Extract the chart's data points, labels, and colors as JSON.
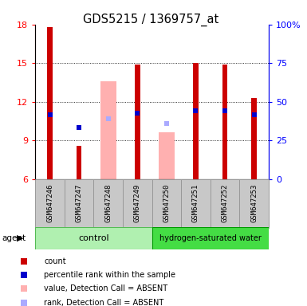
{
  "title": "GDS5215 / 1369757_at",
  "samples": [
    "GSM647246",
    "GSM647247",
    "GSM647248",
    "GSM647249",
    "GSM647250",
    "GSM647251",
    "GSM647252",
    "GSM647253"
  ],
  "ylim_left": [
    6,
    18
  ],
  "ylim_right": [
    0,
    100
  ],
  "yticks_left": [
    6,
    9,
    12,
    15,
    18
  ],
  "yticks_right": [
    0,
    25,
    50,
    75,
    100
  ],
  "yticklabels_right": [
    "0",
    "25",
    "50",
    "75",
    "100%"
  ],
  "red_bars": [
    17.8,
    8.6,
    null,
    14.9,
    null,
    15.0,
    14.9,
    12.3
  ],
  "pink_bars": [
    null,
    null,
    13.6,
    null,
    9.6,
    null,
    null,
    null
  ],
  "blue_squares": [
    11.0,
    10.0,
    null,
    11.1,
    null,
    11.3,
    11.3,
    11.0
  ],
  "lavender_squares": [
    null,
    null,
    10.7,
    null,
    10.3,
    null,
    null,
    null
  ],
  "bar_base": 6,
  "red_color": "#cc0000",
  "pink_color": "#ffb0b0",
  "blue_color": "#0000cc",
  "lavender_color": "#aaaaff",
  "ctrl_color": "#b0f0b0",
  "ctrl_edge": "#55bb55",
  "hyd_color": "#44dd44",
  "hyd_edge": "#009900",
  "gray_color": "#c8c8c8",
  "gray_edge": "#999999",
  "legend_entries": [
    {
      "color": "#cc0000",
      "label": "count"
    },
    {
      "color": "#0000cc",
      "label": "percentile rank within the sample"
    },
    {
      "color": "#ffb0b0",
      "label": "value, Detection Call = ABSENT"
    },
    {
      "color": "#aaaaff",
      "label": "rank, Detection Call = ABSENT"
    }
  ]
}
